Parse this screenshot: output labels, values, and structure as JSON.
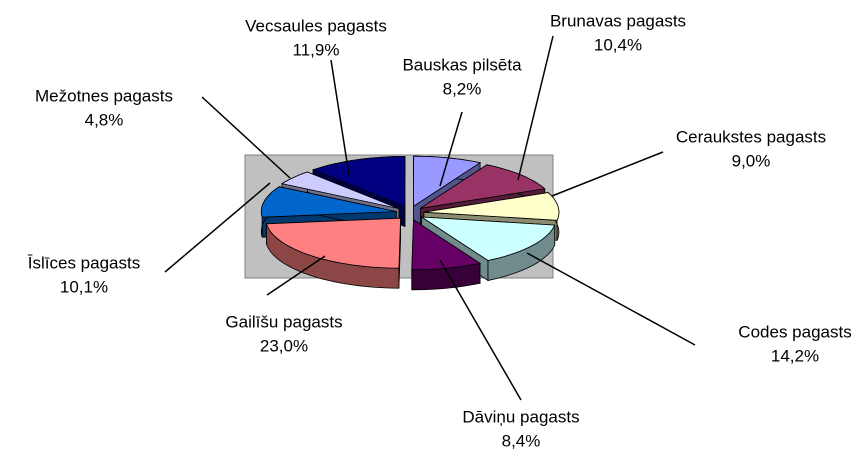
{
  "chart_data": {
    "type": "pie3d",
    "categories": [
      "Bauskas pilsēta",
      "Brunavas pagasts",
      "Ceraukstes pagasts",
      "Codes pagasts",
      "Dāviņu pagasts",
      "Gailīšu pagasts",
      "Īslīces pagasts",
      "Mežotnes pagasts",
      "Vecsaules pagasts"
    ],
    "values": [
      8.2,
      10.4,
      9.0,
      14.2,
      8.4,
      23.0,
      10.1,
      4.8,
      11.9
    ],
    "value_labels": [
      "8,2%",
      "10,4%",
      "9,0%",
      "14,2%",
      "8,4%",
      "23,0%",
      "10,1%",
      "4,8%",
      "11,9%"
    ],
    "colors": [
      "#9999ff",
      "#993366",
      "#ffffcc",
      "#ccffff",
      "#660066",
      "#ff8080",
      "#0066cc",
      "#ccccff",
      "#000080"
    ],
    "plot_background": "#c0c0c0"
  }
}
